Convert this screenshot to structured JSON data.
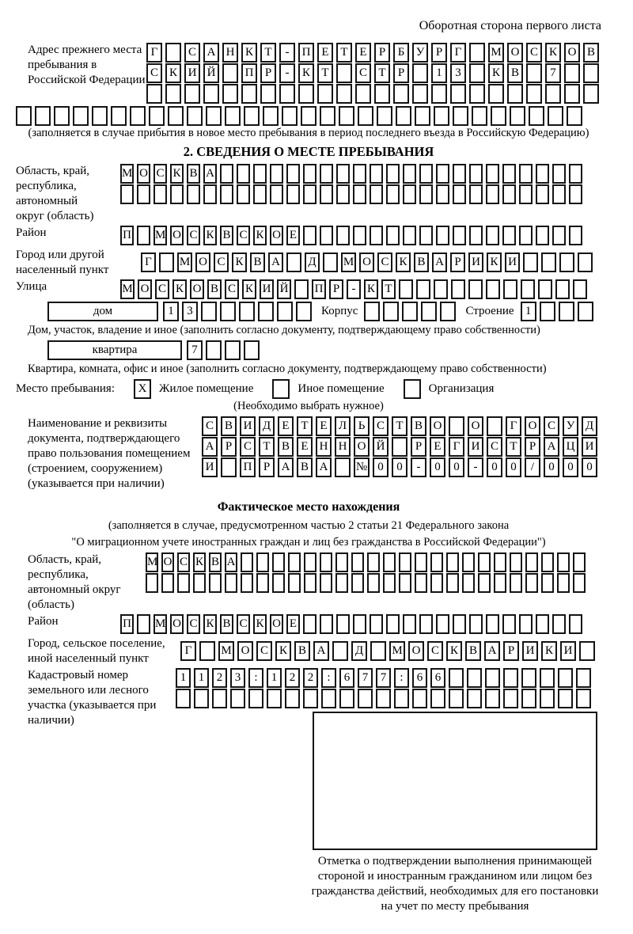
{
  "page": {
    "header_note": "Оборотная сторона первого листа"
  },
  "prev_address": {
    "label": "Адрес прежнего места пребывания в Российской Федерации",
    "rows": [
      {
        "text": "Г САНКТ-ПЕТЕРБУРГ МОСКОВ",
        "len": 24
      },
      {
        "text": "СКИЙ ПР-КТ СТР 13 КВ 7",
        "len": 24
      },
      {
        "text": "",
        "len": 24
      },
      {
        "text": "",
        "len": 30
      }
    ],
    "note": "(заполняется в случае прибытия в новое место пребывания в период последнего въезда в Российскую Федерацию)"
  },
  "section2": {
    "title": "2. СВЕДЕНИЯ О МЕСТЕ ПРЕБЫВАНИЯ",
    "region": {
      "label": "Область, край, республика, автономный округ (область)",
      "rows": [
        {
          "text": "МОСКВА",
          "len": 28
        },
        {
          "text": "",
          "len": 28
        }
      ]
    },
    "district": {
      "label": "Район",
      "rows": [
        {
          "text": "П МОСКВСКОЕ",
          "len": 28
        }
      ]
    },
    "city": {
      "label": "Город или другой населенный пункт",
      "rows": [
        {
          "text": "Г МОСКВА Д МОСКВАРИКИ",
          "len": 25
        }
      ]
    },
    "street": {
      "label": "Улица",
      "rows": [
        {
          "text": "МОСКОВСКИЙ ПР-КТ",
          "len": 27
        }
      ]
    },
    "house": {
      "box_label": "дом",
      "number": {
        "text": "13",
        "len": 8
      },
      "korpus_label": "Корпус",
      "korpus": {
        "text": "",
        "len": 5
      },
      "stroenie_label": "Строение",
      "stroenie": {
        "text": "1",
        "len": 4
      },
      "caption": "Дом, участок, владение и иное (заполнить согласно документу, подтверждающему право собственности)"
    },
    "apartment": {
      "box_label": "квартира",
      "number": {
        "text": "7",
        "len": 4
      },
      "caption": "Квартира, комната, офис и иное (заполнить согласно документу, подтверждающему право собственности)"
    },
    "stay_type": {
      "label": "Место пребывания:",
      "options": [
        {
          "mark": "X",
          "label": "Жилое помещение"
        },
        {
          "mark": "",
          "label": "Иное помещение"
        },
        {
          "mark": "",
          "label": "Организация"
        }
      ],
      "note": "(Необходимо выбрать нужное)"
    },
    "document": {
      "label": "Наименование и реквизиты документа, подтверждающего право пользования помещением (строением, сооружением) (указывается при наличии)",
      "rows": [
        {
          "text": "СВИДЕТЕЛЬСТВО О ГОСУД",
          "len": 21
        },
        {
          "text": "АРСТВЕННОЙ РЕГИСТРАЦИ",
          "len": 21
        },
        {
          "text": "И ПРАВА №00-00-00/000",
          "len": 21
        }
      ]
    }
  },
  "section3": {
    "title": "Фактическое место нахождения",
    "note_line1": "(заполняется в случае, предусмотренном частью 2 статьи 21 Федерального закона",
    "note_line2": "\"О миграционном учете иностранных граждан и лиц без гражданства в Российской Федерации\")",
    "region": {
      "label": "Область, край, республика, автономный округ (область)",
      "rows": [
        {
          "text": "МОСКВА",
          "len": 28
        },
        {
          "text": "",
          "len": 28
        }
      ]
    },
    "district": {
      "label": "Район",
      "rows": [
        {
          "text": "П МОСКВСКОЕ",
          "len": 28
        }
      ]
    },
    "city": {
      "label": "Город, сельское поселение, иной населенный пункт",
      "rows": [
        {
          "text": "Г МОСКВА Д МОСКВАРИКИ",
          "len": 22
        }
      ]
    },
    "cadastral": {
      "label": "Кадастровый номер земельного или лесного участка (указывается при наличии)",
      "rows": [
        {
          "text": "1123:122:677:66",
          "len": 23
        },
        {
          "text": "",
          "len": 23
        }
      ]
    },
    "stamp_caption": "Отметка о подтверждении выполнения принимающей стороной и иностранным гражданином или лицом без гражданства действий, необходимых для его постановки на учет по месту пребывания"
  }
}
